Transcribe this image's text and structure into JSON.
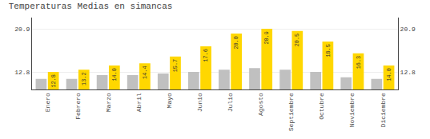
{
  "chart_data": {
    "type": "bar",
    "title": "Temperaturas Medias en simancas",
    "categories": [
      "Enero",
      "Febrero",
      "Marzo",
      "Abril",
      "Mayo",
      "Junio",
      "Julio",
      "Agosto",
      "Septiembre",
      "Octubre",
      "Noviembre",
      "Diciembre"
    ],
    "series": [
      {
        "color": "#C0C0C0",
        "values": [
          11.5,
          11.5,
          12.2,
          12.2,
          12.5,
          12.8,
          13.2,
          13.5,
          13.2,
          12.8,
          11.8,
          11.5
        ]
      },
      {
        "color": "#FFD700",
        "values": [
          12.8,
          13.2,
          14.0,
          14.4,
          15.7,
          17.6,
          20.0,
          20.9,
          20.5,
          18.5,
          16.3,
          14.0
        ],
        "value_labels": [
          "12.8",
          "13.2",
          "14.0",
          "14.4",
          "15.7",
          "17.6",
          "20.0",
          "20.9",
          "20.5",
          "18.5",
          "16.3",
          "14.0"
        ],
        "data_labels": true
      }
    ],
    "ylim": [
      9.5,
      23.0
    ],
    "yticks": [
      12.8,
      20.9
    ],
    "y2lim": [
      9.5,
      23.0
    ],
    "y2ticks": [
      12.8,
      20.9
    ],
    "grid": true
  }
}
